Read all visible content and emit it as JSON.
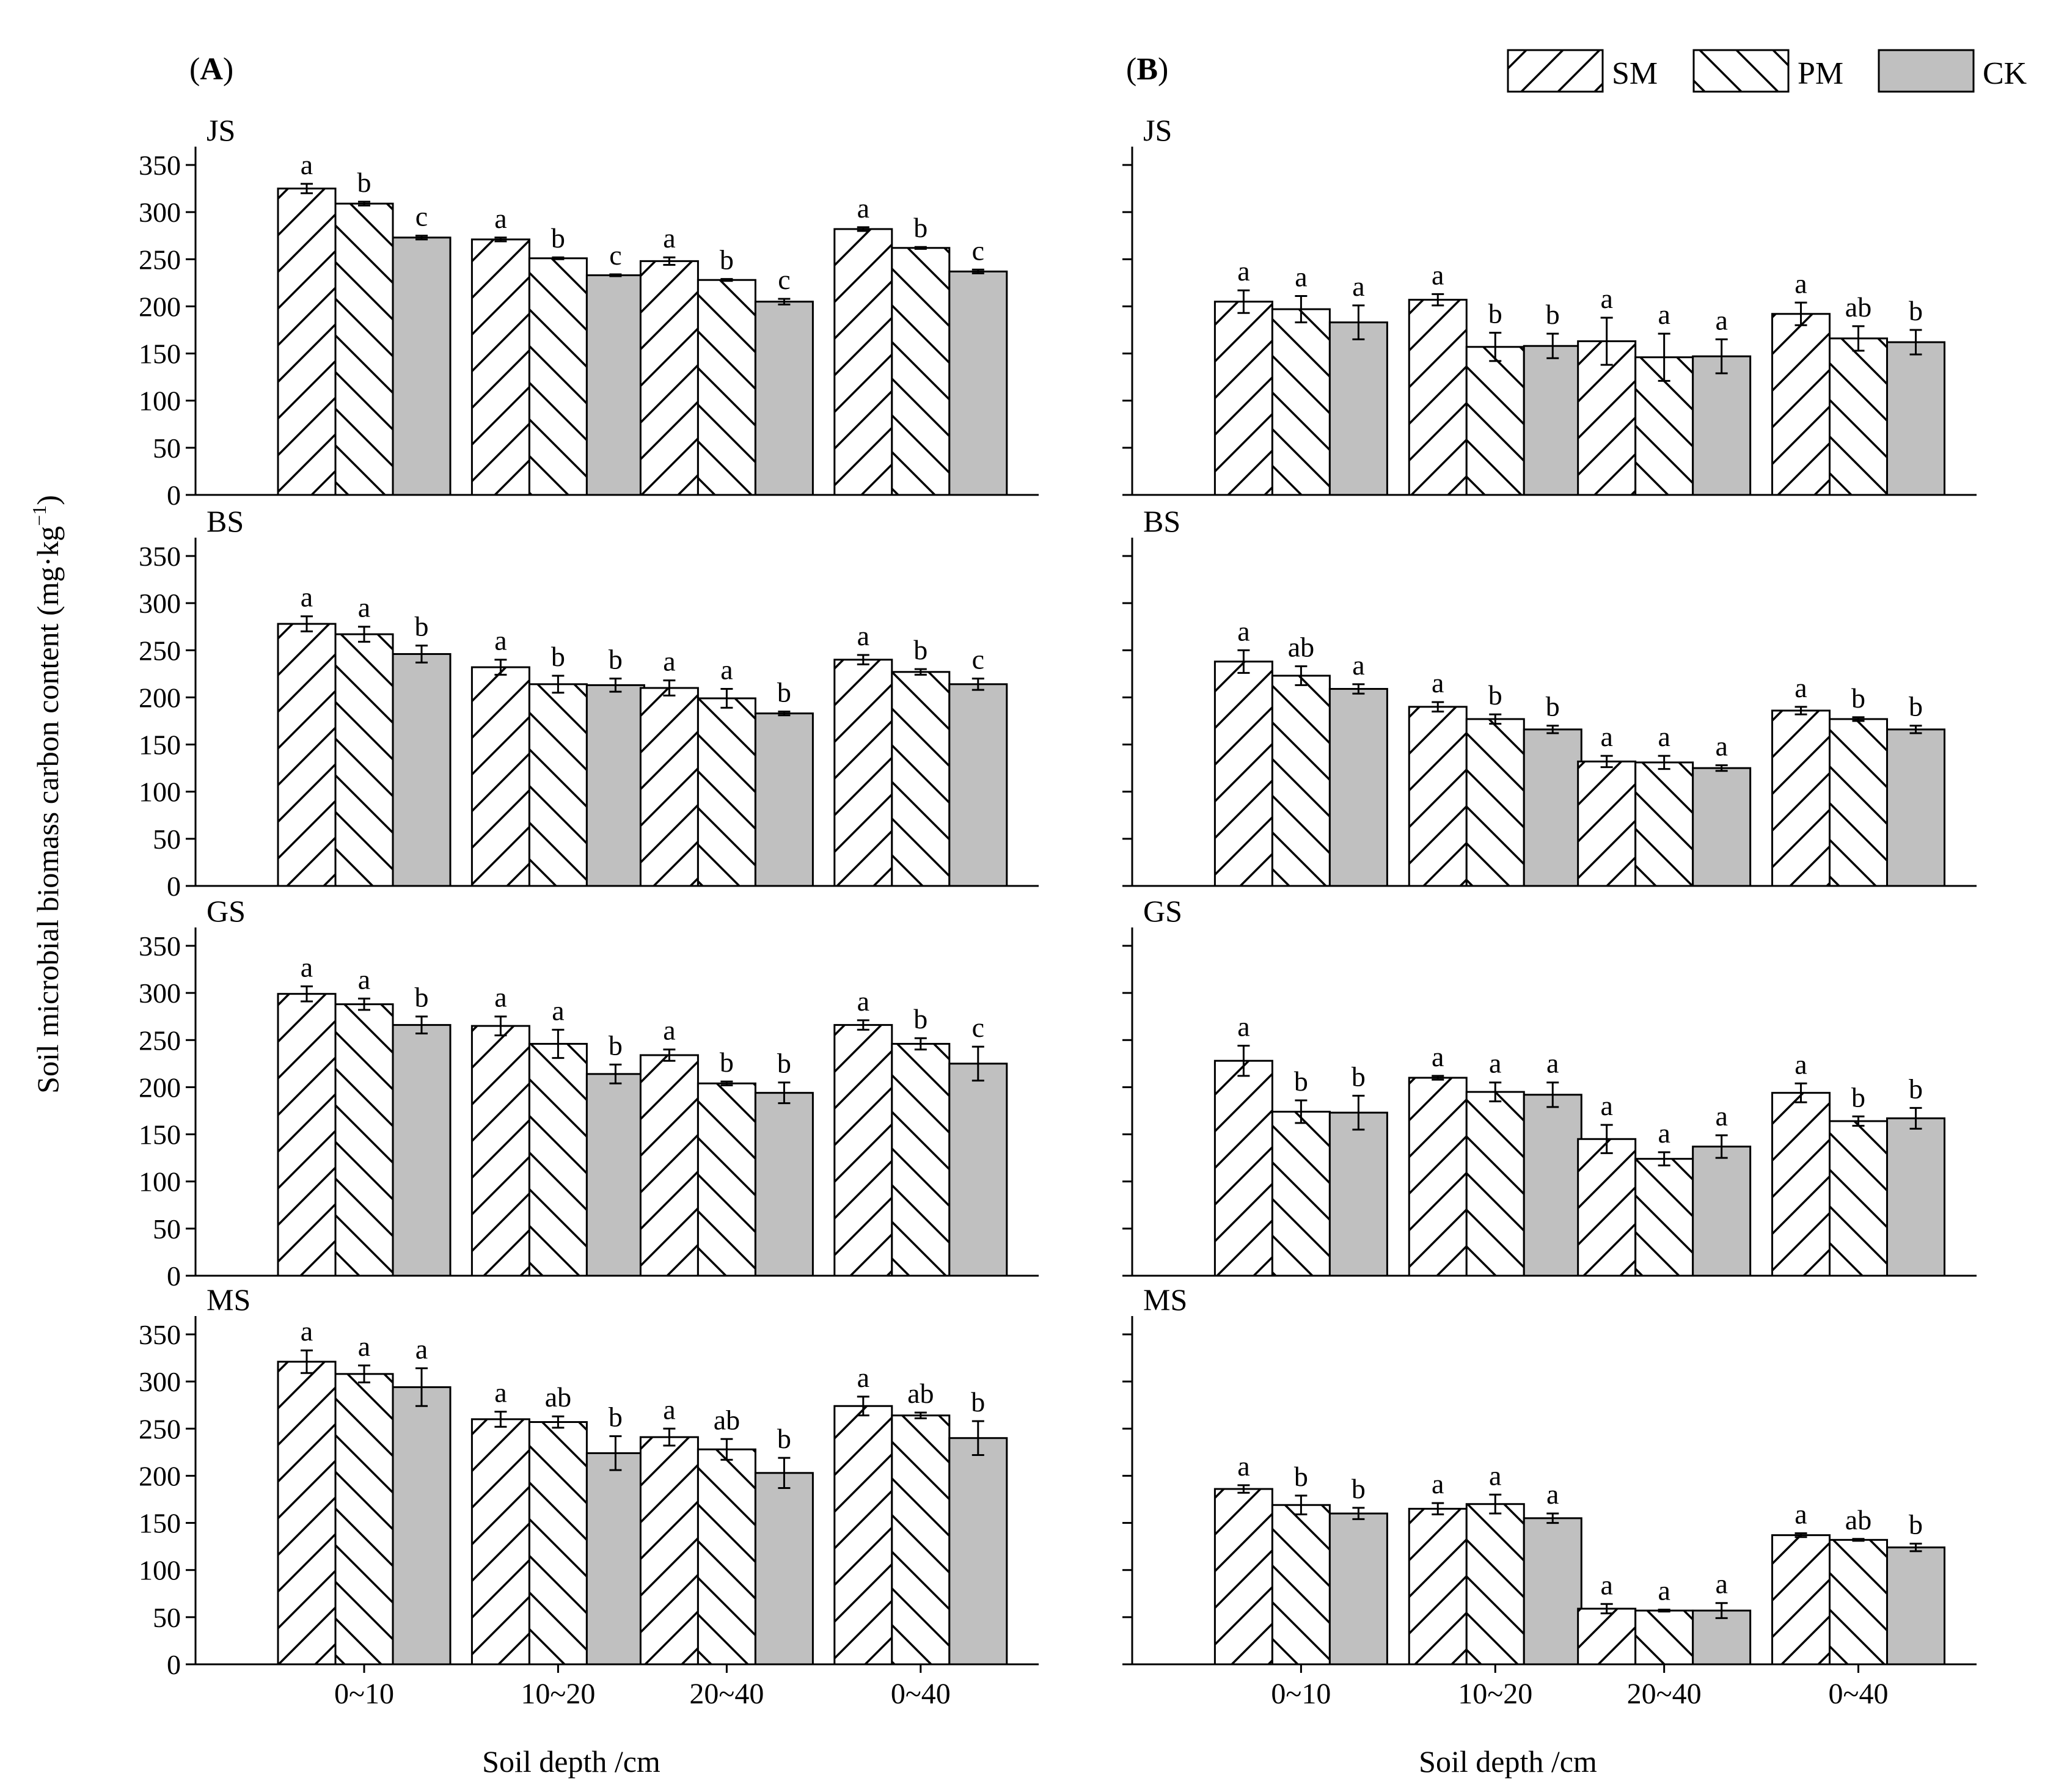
{
  "figure": {
    "y_axis_label": "Soil microbial biomass carbon content (mg·kg",
    "y_axis_label_sup": "−1",
    "y_axis_label_close": ")",
    "x_axis_label": "Soil depth /cm",
    "legend": [
      {
        "name": "SM",
        "pattern": "forward-hatch"
      },
      {
        "name": "PM",
        "pattern": "backward-hatch"
      },
      {
        "name": "CK",
        "pattern": "solid-gray"
      }
    ],
    "colors": {
      "axis": "#000000",
      "ck_fill": "#c0c0c0",
      "hatch": "#000000",
      "background": "#ffffff"
    }
  },
  "chart_data": [
    {
      "type": "bar",
      "column": "A",
      "column_label": "A",
      "panel_label": "JS",
      "show_column_label": true,
      "categories": [
        "0~10",
        "10~20",
        "20~40",
        "0~40"
      ],
      "series": [
        {
          "name": "SM",
          "values": [
            325,
            271,
            248,
            282
          ],
          "errors": [
            5,
            2,
            4,
            2
          ],
          "letters": [
            "a",
            "a",
            "a",
            "a"
          ]
        },
        {
          "name": "PM",
          "values": [
            309,
            251,
            228,
            262
          ],
          "errors": [
            2,
            1,
            1,
            1
          ],
          "letters": [
            "b",
            "b",
            "b",
            "b"
          ]
        },
        {
          "name": "CK",
          "values": [
            273,
            233,
            205,
            237
          ],
          "errors": [
            2,
            1,
            3,
            2
          ],
          "letters": [
            "c",
            "c",
            "c",
            "c"
          ]
        }
      ],
      "ylim": [
        0,
        350
      ],
      "yticks": [
        0,
        50,
        100,
        150,
        200,
        250,
        300,
        350
      ]
    },
    {
      "type": "bar",
      "column": "A",
      "panel_label": "BS",
      "categories": [
        "0~10",
        "10~20",
        "20~40",
        "0~40"
      ],
      "series": [
        {
          "name": "SM",
          "values": [
            278,
            232,
            210,
            240
          ],
          "errors": [
            8,
            8,
            8,
            5
          ],
          "letters": [
            "a",
            "a",
            "a",
            "a"
          ]
        },
        {
          "name": "PM",
          "values": [
            267,
            214,
            199,
            227
          ],
          "errors": [
            8,
            9,
            10,
            3
          ],
          "letters": [
            "a",
            "b",
            "a",
            "b"
          ]
        },
        {
          "name": "CK",
          "values": [
            246,
            213,
            183,
            214
          ],
          "errors": [
            9,
            7,
            2,
            6
          ],
          "letters": [
            "b",
            "b",
            "b",
            "c"
          ]
        }
      ],
      "ylim": [
        0,
        350
      ],
      "yticks": [
        0,
        50,
        100,
        150,
        200,
        250,
        300,
        350
      ]
    },
    {
      "type": "bar",
      "column": "A",
      "panel_label": "GS",
      "categories": [
        "0~10",
        "10~20",
        "20~40",
        "0~40"
      ],
      "series": [
        {
          "name": "SM",
          "values": [
            299,
            265,
            234,
            266
          ],
          "errors": [
            8,
            10,
            6,
            5
          ],
          "letters": [
            "a",
            "a",
            "a",
            "a"
          ]
        },
        {
          "name": "PM",
          "values": [
            288,
            246,
            204,
            246
          ],
          "errors": [
            6,
            15,
            2,
            6
          ],
          "letters": [
            "a",
            "a",
            "b",
            "b"
          ]
        },
        {
          "name": "CK",
          "values": [
            266,
            214,
            194,
            225
          ],
          "errors": [
            9,
            10,
            11,
            18
          ],
          "letters": [
            "b",
            "b",
            "b",
            "c"
          ]
        }
      ],
      "ylim": [
        0,
        350
      ],
      "yticks": [
        0,
        50,
        100,
        150,
        200,
        250,
        300,
        350
      ]
    },
    {
      "type": "bar",
      "column": "A",
      "panel_label": "MS",
      "show_x_labels": true,
      "categories": [
        "0~10",
        "10~20",
        "20~40",
        "0~40"
      ],
      "series": [
        {
          "name": "SM",
          "values": [
            321,
            260,
            241,
            274
          ],
          "errors": [
            12,
            8,
            9,
            10
          ],
          "letters": [
            "a",
            "a",
            "a",
            "a"
          ]
        },
        {
          "name": "PM",
          "values": [
            308,
            257,
            228,
            264
          ],
          "errors": [
            9,
            6,
            11,
            3
          ],
          "letters": [
            "a",
            "ab",
            "ab",
            "ab"
          ]
        },
        {
          "name": "CK",
          "values": [
            294,
            224,
            203,
            240
          ],
          "errors": [
            20,
            18,
            16,
            18
          ],
          "letters": [
            "a",
            "b",
            "b",
            "b"
          ]
        }
      ],
      "ylim": [
        0,
        350
      ],
      "yticks": [
        0,
        50,
        100,
        150,
        200,
        250,
        300,
        350
      ]
    },
    {
      "type": "bar",
      "column": "B",
      "column_label": "B",
      "panel_label": "JS",
      "show_column_label": true,
      "categories": [
        "0~10",
        "10~20",
        "20~40",
        "0~40"
      ],
      "series": [
        {
          "name": "SM",
          "values": [
            205,
            207,
            163,
            192
          ],
          "errors": [
            12,
            6,
            25,
            12
          ],
          "letters": [
            "a",
            "a",
            "a",
            "a"
          ]
        },
        {
          "name": "PM",
          "values": [
            197,
            157,
            146,
            166
          ],
          "errors": [
            14,
            15,
            25,
            13
          ],
          "letters": [
            "a",
            "b",
            "a",
            "ab"
          ]
        },
        {
          "name": "CK",
          "values": [
            183,
            158,
            147,
            162
          ],
          "errors": [
            18,
            13,
            18,
            13
          ],
          "letters": [
            "a",
            "b",
            "a",
            "b"
          ]
        }
      ],
      "ylim": [
        0,
        350
      ]
    },
    {
      "type": "bar",
      "column": "B",
      "panel_label": "BS",
      "categories": [
        "0~10",
        "10~20",
        "20~40",
        "0~40"
      ],
      "series": [
        {
          "name": "SM",
          "values": [
            238,
            190,
            132,
            186
          ],
          "errors": [
            12,
            5,
            6,
            4
          ],
          "letters": [
            "a",
            "a",
            "a",
            "a"
          ]
        },
        {
          "name": "PM",
          "values": [
            223,
            177,
            131,
            177
          ],
          "errors": [
            10,
            5,
            7,
            2
          ],
          "letters": [
            "ab",
            "b",
            "a",
            "b"
          ]
        },
        {
          "name": "CK",
          "values": [
            209,
            166,
            125,
            166
          ],
          "errors": [
            5,
            4,
            3,
            4
          ],
          "letters": [
            "a",
            "b",
            "a",
            "b"
          ]
        }
      ],
      "ylim": [
        0,
        350
      ]
    },
    {
      "type": "bar",
      "column": "B",
      "panel_label": "GS",
      "categories": [
        "0~10",
        "10~20",
        "20~40",
        "0~40"
      ],
      "series": [
        {
          "name": "SM",
          "values": [
            228,
            210,
            145,
            194
          ],
          "errors": [
            16,
            2,
            15,
            10
          ],
          "letters": [
            "a",
            "a",
            "a",
            "a"
          ]
        },
        {
          "name": "PM",
          "values": [
            174,
            195,
            124,
            164
          ],
          "errors": [
            12,
            10,
            7,
            5
          ],
          "letters": [
            "b",
            "a",
            "a",
            "b"
          ]
        },
        {
          "name": "CK",
          "values": [
            173,
            192,
            137,
            167
          ],
          "errors": [
            18,
            13,
            12,
            11
          ],
          "letters": [
            "b",
            "a",
            "a",
            "b"
          ]
        }
      ],
      "ylim": [
        0,
        350
      ]
    },
    {
      "type": "bar",
      "column": "B",
      "panel_label": "MS",
      "show_x_labels": true,
      "categories": [
        "0~10",
        "10~20",
        "20~40",
        "0~40"
      ],
      "series": [
        {
          "name": "SM",
          "values": [
            186,
            165,
            59,
            137
          ],
          "errors": [
            4,
            6,
            5,
            2
          ],
          "letters": [
            "a",
            "a",
            "a",
            "a"
          ]
        },
        {
          "name": "PM",
          "values": [
            169,
            170,
            57,
            132
          ],
          "errors": [
            10,
            10,
            1,
            1
          ],
          "letters": [
            "b",
            "a",
            "a",
            "ab"
          ]
        },
        {
          "name": "CK",
          "values": [
            160,
            155,
            57,
            124
          ],
          "errors": [
            6,
            5,
            8,
            4
          ],
          "letters": [
            "b",
            "a",
            "a",
            "b"
          ]
        }
      ],
      "ylim": [
        0,
        350
      ]
    }
  ]
}
